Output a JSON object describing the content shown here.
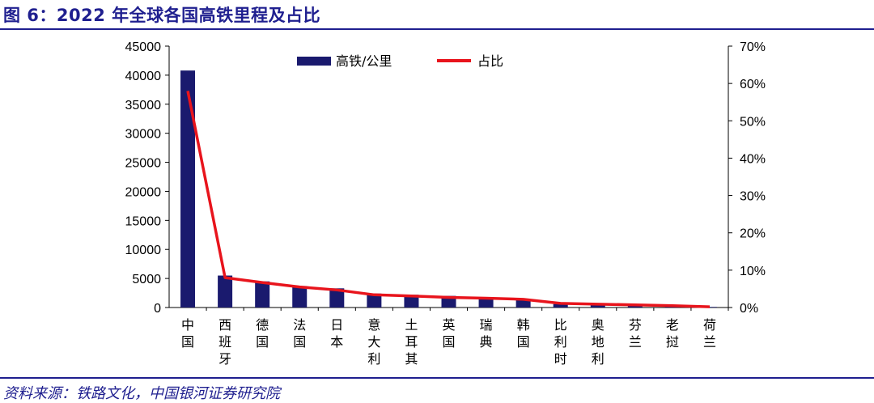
{
  "header": {
    "title": "图 6：2022 年全球各国高铁里程及占比"
  },
  "footer": {
    "source": "资料来源：铁路文化，中国银河证券研究院"
  },
  "colors": {
    "bar": "#1a1a6e",
    "line": "#e8141c",
    "axis": "#000000",
    "title": "#1f1f8f"
  },
  "chart_data": {
    "type": "bar",
    "title": "2022 年全球各国高铁里程及占比",
    "categories": [
      "中国",
      "西班牙",
      "德国",
      "法国",
      "日本",
      "意大利",
      "土耳其",
      "英国",
      "瑞典",
      "韩国",
      "比利时",
      "奥地利",
      "芬兰",
      "老挝",
      "荷兰"
    ],
    "series": [
      {
        "name": "高铁/公里",
        "type": "bar",
        "axis": "left",
        "values": [
          40800,
          5500,
          4500,
          3700,
          3300,
          2400,
          2200,
          2000,
          1700,
          1400,
          600,
          500,
          400,
          300,
          100
        ]
      },
      {
        "name": "占比",
        "type": "line",
        "axis": "right",
        "values": [
          0.58,
          0.08,
          0.067,
          0.055,
          0.047,
          0.034,
          0.031,
          0.027,
          0.025,
          0.022,
          0.011,
          0.009,
          0.007,
          0.005,
          0.002
        ]
      }
    ],
    "yleft": {
      "min": 0,
      "max": 45000,
      "ticks": [
        "0",
        "5000",
        "10000",
        "15000",
        "20000",
        "25000",
        "30000",
        "35000",
        "40000",
        "45000"
      ]
    },
    "yright": {
      "min": 0,
      "max": 0.7,
      "ticks": [
        "0%",
        "10%",
        "20%",
        "30%",
        "40%",
        "50%",
        "60%",
        "70%"
      ]
    },
    "legend": {
      "position": "top-center"
    },
    "grid": false
  }
}
